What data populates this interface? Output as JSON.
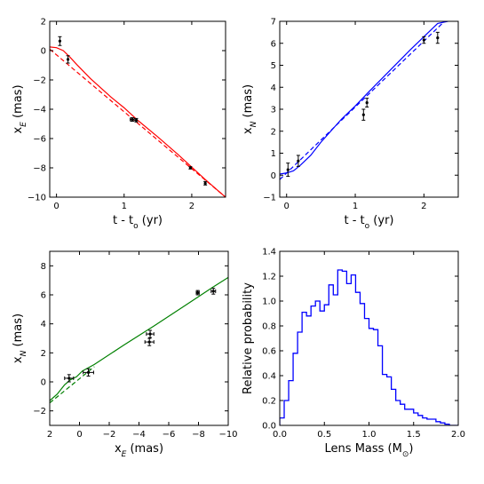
{
  "colors": {
    "red": "#ff0000",
    "blue": "#0000ff",
    "green": "#008000",
    "black": "#000000"
  },
  "chart_data": [
    {
      "id": "p1",
      "type": "line",
      "xlabel": "t - t",
      "xlabel_sub": "o",
      "xlabel_unit": " (yr)",
      "ylabel": "x",
      "ylabel_sub": "E",
      "ylabel_unit": " (mas)",
      "xlim": [
        -0.1,
        2.5
      ],
      "ylim": [
        -10,
        2
      ],
      "xticks": [
        0,
        1,
        2
      ],
      "xtick_labels": [
        "0",
        "1",
        "2"
      ],
      "yticks": [
        -10,
        -8,
        -6,
        -4,
        -2,
        0,
        2
      ],
      "ytick_labels": [
        "−10",
        "−8",
        "−6",
        "−4",
        "−2",
        "0",
        "2"
      ],
      "series": [
        {
          "style": "solid",
          "color": "#ff0000",
          "x": [
            -0.1,
            0.0,
            0.1,
            0.2,
            0.3,
            0.5,
            0.8,
            1.0,
            1.2,
            1.5,
            1.8,
            2.0,
            2.2,
            2.4,
            2.5
          ],
          "y": [
            0.25,
            0.2,
            0.0,
            -0.45,
            -0.95,
            -1.9,
            -3.15,
            -3.9,
            -4.75,
            -5.9,
            -7.1,
            -7.95,
            -8.8,
            -9.6,
            -10.0
          ]
        },
        {
          "style": "dashed",
          "color": "#ff0000",
          "x": [
            -0.1,
            2.5
          ],
          "y": [
            0.1,
            -10.0
          ]
        }
      ],
      "points": [
        {
          "x": 0.05,
          "y": 0.65,
          "yerr": 0.3
        },
        {
          "x": 0.17,
          "y": -0.6,
          "yerr": 0.25
        },
        {
          "x": 1.12,
          "y": -4.7,
          "yerr": 0.12,
          "xerr": 0.03
        },
        {
          "x": 1.18,
          "y": -4.75,
          "yerr": 0.12
        },
        {
          "x": 1.98,
          "y": -8.0,
          "yerr": 0.08
        },
        {
          "x": 2.2,
          "y": -9.05,
          "yerr": 0.12
        }
      ]
    },
    {
      "id": "p2",
      "type": "line",
      "xlabel": "t - t",
      "xlabel_sub": "o",
      "xlabel_unit": " (yr)",
      "ylabel": "x",
      "ylabel_sub": "N",
      "ylabel_unit": " (mas)",
      "xlim": [
        -0.1,
        2.5
      ],
      "ylim": [
        -1,
        7
      ],
      "xticks": [
        0,
        1,
        2
      ],
      "xtick_labels": [
        "0",
        "1",
        "2"
      ],
      "yticks": [
        -1,
        0,
        1,
        2,
        3,
        4,
        5,
        6,
        7
      ],
      "ytick_labels": [
        "−1",
        "0",
        "1",
        "2",
        "3",
        "4",
        "5",
        "6",
        "7"
      ],
      "series": [
        {
          "style": "solid",
          "color": "#0000ff",
          "x": [
            -0.1,
            0.0,
            0.1,
            0.2,
            0.35,
            0.5,
            0.8,
            1.0,
            1.2,
            1.5,
            1.8,
            2.0,
            2.2,
            2.35
          ],
          "y": [
            0.05,
            0.1,
            0.2,
            0.45,
            0.9,
            1.5,
            2.55,
            3.15,
            3.8,
            4.75,
            5.7,
            6.3,
            6.9,
            7.0
          ]
        },
        {
          "style": "dashed",
          "color": "#0000ff",
          "x": [
            -0.1,
            2.3
          ],
          "y": [
            -0.2,
            7.0
          ]
        }
      ],
      "points": [
        {
          "x": 0.02,
          "y": 0.25,
          "yerr": 0.3
        },
        {
          "x": 0.17,
          "y": 0.65,
          "yerr": 0.25
        },
        {
          "x": 1.12,
          "y": 2.75,
          "yerr": 0.25
        },
        {
          "x": 1.17,
          "y": 3.3,
          "yerr": 0.2
        },
        {
          "x": 2.0,
          "y": 6.15,
          "yerr": 0.15
        },
        {
          "x": 2.2,
          "y": 6.25,
          "yerr": 0.25
        }
      ]
    },
    {
      "id": "p3",
      "type": "line",
      "xlabel": "x",
      "xlabel_sub": "E",
      "xlabel_unit": "  (mas)",
      "ylabel": "x",
      "ylabel_sub": "N",
      "ylabel_unit": " (mas)",
      "xlim": [
        2,
        -10
      ],
      "ylim": [
        -3,
        9
      ],
      "xticks": [
        2,
        0,
        -2,
        -4,
        -6,
        -8,
        -10
      ],
      "xtick_labels": [
        "2",
        "0",
        "−2",
        "−4",
        "−6",
        "−8",
        "−10"
      ],
      "yticks": [
        -2,
        0,
        2,
        4,
        6,
        8
      ],
      "ytick_labels": [
        "−2",
        "0",
        "2",
        "4",
        "6",
        "8"
      ],
      "series": [
        {
          "style": "solid",
          "color": "#008000",
          "x": [
            2.0,
            1.5,
            1.0,
            0.6,
            0.2,
            -0.2,
            -1.0,
            -3.0,
            -5.0,
            -7.0,
            -9.0,
            -10.0
          ],
          "y": [
            -1.3,
            -0.85,
            -0.2,
            0.15,
            0.35,
            0.75,
            1.2,
            2.55,
            3.85,
            5.2,
            6.55,
            7.2
          ]
        },
        {
          "style": "dashed",
          "color": "#008000",
          "x": [
            2.0,
            -1.0
          ],
          "y": [
            -1.45,
            1.05
          ]
        }
      ],
      "points": [
        {
          "x": 0.7,
          "y": 0.25,
          "yerr": 0.25,
          "xerr": 0.3
        },
        {
          "x": -0.6,
          "y": 0.65,
          "yerr": 0.25,
          "xerr": 0.35
        },
        {
          "x": -4.7,
          "y": 2.75,
          "yerr": 0.25,
          "xerr": 0.3
        },
        {
          "x": -4.75,
          "y": 3.3,
          "yerr": 0.25,
          "xerr": 0.25
        },
        {
          "x": -7.95,
          "y": 6.15,
          "yerr": 0.15,
          "xerr": 0.1
        },
        {
          "x": -9.0,
          "y": 6.25,
          "yerr": 0.2,
          "xerr": 0.15
        }
      ]
    },
    {
      "id": "p4",
      "type": "histogram",
      "xlabel": "Lens Mass (M",
      "xlabel_sub": "⊙",
      "xlabel_unit": ")",
      "ylabel": "Relative probability",
      "ylabel_sub": "",
      "ylabel_unit": "",
      "xlim": [
        0,
        2
      ],
      "ylim": [
        0,
        1.4
      ],
      "xticks": [
        0,
        0.5,
        1,
        1.5,
        2
      ],
      "xtick_labels": [
        "0.0",
        "0.5",
        "1.0",
        "1.5",
        "2.0"
      ],
      "yticks": [
        0,
        0.2,
        0.4,
        0.6,
        0.8,
        1.0,
        1.2,
        1.4
      ],
      "ytick_labels": [
        "0.0",
        "0.2",
        "0.4",
        "0.6",
        "0.8",
        "1.0",
        "1.2",
        "1.4"
      ],
      "color": "#0000ff",
      "bin_width": 0.05,
      "x_start": 0,
      "values": [
        0.06,
        0.2,
        0.36,
        0.58,
        0.75,
        0.91,
        0.88,
        0.96,
        1.0,
        0.92,
        0.97,
        1.13,
        1.05,
        1.25,
        1.24,
        1.14,
        1.21,
        1.07,
        0.98,
        0.86,
        0.78,
        0.77,
        0.64,
        0.41,
        0.39,
        0.29,
        0.2,
        0.17,
        0.13,
        0.13,
        0.1,
        0.08,
        0.06,
        0.05,
        0.05,
        0.03,
        0.02,
        0.01,
        0.0,
        0.0
      ]
    }
  ]
}
